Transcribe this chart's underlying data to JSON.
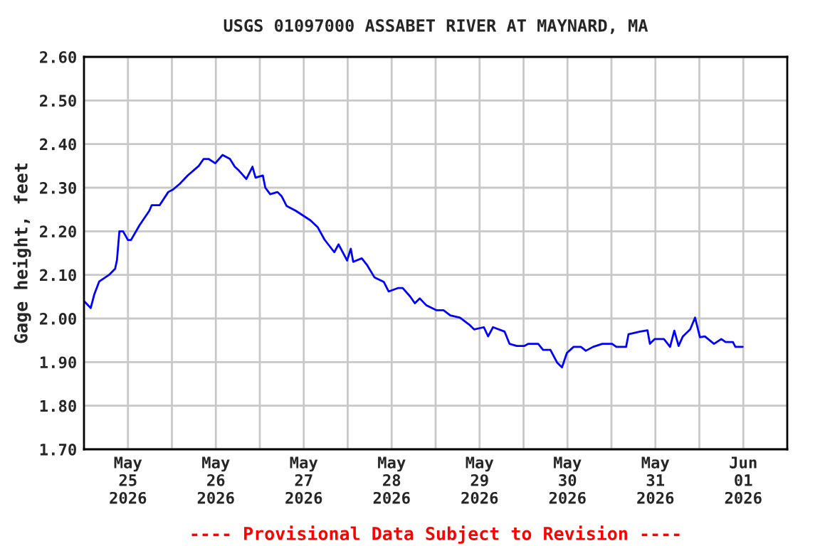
{
  "chart_data": {
    "type": "line",
    "title": "USGS 01097000 ASSABET RIVER AT MAYNARD, MA",
    "ylabel": "Gage height, feet",
    "annotations": [
      "---- Provisional Data Subject to Revision ----"
    ],
    "xlim": [
      "2026-05-25T00:00",
      "2026-06-02T00:00"
    ],
    "xticks": [
      {
        "value": "2026-05-25T12:00",
        "label": "May\n25\n2026"
      },
      {
        "value": "2026-05-26T00:00",
        "label": null
      },
      {
        "value": "2026-05-26T12:00",
        "label": "May\n26\n2026"
      },
      {
        "value": "2026-05-27T00:00",
        "label": null
      },
      {
        "value": "2026-05-27T12:00",
        "label": "May\n27\n2026"
      },
      {
        "value": "2026-05-28T00:00",
        "label": null
      },
      {
        "value": "2026-05-28T12:00",
        "label": "May\n28\n2026"
      },
      {
        "value": "2026-05-29T00:00",
        "label": null
      },
      {
        "value": "2026-05-29T12:00",
        "label": "May\n29\n2026"
      },
      {
        "value": "2026-05-30T00:00",
        "label": null
      },
      {
        "value": "2026-05-30T12:00",
        "label": "May\n30\n2026"
      },
      {
        "value": "2026-05-31T00:00",
        "label": null
      },
      {
        "value": "2026-05-31T12:00",
        "label": "May\n31\n2026"
      },
      {
        "value": "2026-06-01T00:00",
        "label": null
      },
      {
        "value": "2026-06-01T12:00",
        "label": "Jun\n01\n2026"
      }
    ],
    "ylim": [
      1.7,
      2.6
    ],
    "yticks": [
      {
        "value": 1.7,
        "label": "1.70"
      },
      {
        "value": 1.8,
        "label": "1.80"
      },
      {
        "value": 1.9,
        "label": "1.90"
      },
      {
        "value": 2.0,
        "label": "2.00"
      },
      {
        "value": 2.1,
        "label": "2.10"
      },
      {
        "value": 2.2,
        "label": "2.20"
      },
      {
        "value": 2.3,
        "label": "2.30"
      },
      {
        "value": 2.4,
        "label": "2.40"
      },
      {
        "value": 2.5,
        "label": "2.50"
      },
      {
        "value": 2.6,
        "label": "2.60"
      }
    ],
    "grid": true,
    "series": [
      {
        "color": "#0000ff",
        "x": [
          "2026-05-25T00:00",
          "2026-05-25T01:50",
          "2026-05-25T02:50",
          "2026-05-25T04:10",
          "2026-05-25T06:50",
          "2026-05-25T08:30",
          "2026-05-25T09:00",
          "2026-05-25T09:40",
          "2026-05-25T10:40",
          "2026-05-25T12:00",
          "2026-05-25T12:50",
          "2026-05-25T15:10",
          "2026-05-25T17:50",
          "2026-05-25T18:30",
          "2026-05-25T20:40",
          "2026-05-25T23:00",
          "2026-05-26T00:20",
          "2026-05-26T02:10",
          "2026-05-26T04:20",
          "2026-05-26T07:20",
          "2026-05-26T08:40",
          "2026-05-26T10:00",
          "2026-05-26T11:50",
          "2026-05-26T13:50",
          "2026-05-26T15:50",
          "2026-05-26T17:10",
          "2026-05-26T18:20",
          "2026-05-26T20:20",
          "2026-05-26T22:00",
          "2026-05-26T22:50",
          "2026-05-27T00:50",
          "2026-05-27T01:30",
          "2026-05-27T02:50",
          "2026-05-27T04:50",
          "2026-05-27T06:00",
          "2026-05-27T07:20",
          "2026-05-27T09:50",
          "2026-05-27T11:50",
          "2026-05-27T13:50",
          "2026-05-27T15:50",
          "2026-05-27T17:40",
          "2026-05-27T20:20",
          "2026-05-27T21:30",
          "2026-05-27T23:50",
          "2026-05-28T00:50",
          "2026-05-28T01:30",
          "2026-05-28T03:50",
          "2026-05-28T05:20",
          "2026-05-28T07:20",
          "2026-05-28T09:50",
          "2026-05-28T11:10",
          "2026-05-28T13:50",
          "2026-05-28T15:00",
          "2026-05-28T17:00",
          "2026-05-28T18:20",
          "2026-05-28T19:40",
          "2026-05-28T21:30",
          "2026-05-29T00:10",
          "2026-05-29T02:10",
          "2026-05-29T04:00",
          "2026-05-29T06:40",
          "2026-05-29T09:10",
          "2026-05-29T10:30",
          "2026-05-29T13:10",
          "2026-05-29T14:20",
          "2026-05-29T15:40",
          "2026-05-29T18:50",
          "2026-05-29T20:10",
          "2026-05-29T22:10",
          "2026-05-30T00:10",
          "2026-05-30T01:20",
          "2026-05-30T04:00",
          "2026-05-30T05:20",
          "2026-05-30T07:20",
          "2026-05-30T09:10",
          "2026-05-30T10:30",
          "2026-05-30T11:50",
          "2026-05-30T13:40",
          "2026-05-30T15:40",
          "2026-05-30T17:00",
          "2026-05-30T19:00",
          "2026-05-30T21:30",
          "2026-05-31T00:10",
          "2026-05-31T01:20",
          "2026-05-31T04:00",
          "2026-05-31T04:40",
          "2026-05-31T07:50",
          "2026-05-31T09:50",
          "2026-05-31T10:30",
          "2026-05-31T11:50",
          "2026-05-31T14:20",
          "2026-05-31T16:00",
          "2026-05-31T17:10",
          "2026-05-31T18:20",
          "2026-05-31T19:30",
          "2026-05-31T21:30",
          "2026-05-31T22:50",
          "2026-06-01T00:10",
          "2026-06-01T01:30",
          "2026-06-01T04:00",
          "2026-06-01T06:00",
          "2026-06-01T07:10",
          "2026-06-01T09:10",
          "2026-06-01T09:50",
          "2026-06-01T11:50"
        ],
        "values": [
          2.04,
          2.024,
          2.056,
          2.085,
          2.1,
          2.114,
          2.134,
          2.2,
          2.2,
          2.18,
          2.18,
          2.214,
          2.247,
          2.26,
          2.26,
          2.29,
          2.296,
          2.309,
          2.328,
          2.35,
          2.366,
          2.366,
          2.356,
          2.375,
          2.366,
          2.348,
          2.339,
          2.32,
          2.348,
          2.323,
          2.328,
          2.3,
          2.285,
          2.29,
          2.28,
          2.258,
          2.247,
          2.236,
          2.225,
          2.209,
          2.181,
          2.152,
          2.17,
          2.133,
          2.16,
          2.13,
          2.138,
          2.122,
          2.094,
          2.084,
          2.062,
          2.07,
          2.07,
          2.051,
          2.035,
          2.046,
          2.03,
          2.019,
          2.019,
          2.007,
          2.002,
          1.986,
          1.975,
          1.98,
          1.959,
          1.98,
          1.97,
          1.942,
          1.937,
          1.937,
          1.942,
          1.942,
          1.928,
          1.928,
          1.899,
          1.888,
          1.921,
          1.935,
          1.935,
          1.926,
          1.935,
          1.942,
          1.942,
          1.935,
          1.935,
          1.964,
          1.97,
          1.973,
          1.942,
          1.953,
          1.953,
          1.935,
          1.972,
          1.937,
          1.959,
          1.975,
          2.002,
          1.957,
          1.959,
          1.942,
          1.953,
          1.946,
          1.946,
          1.935,
          1.935
        ]
      }
    ]
  }
}
